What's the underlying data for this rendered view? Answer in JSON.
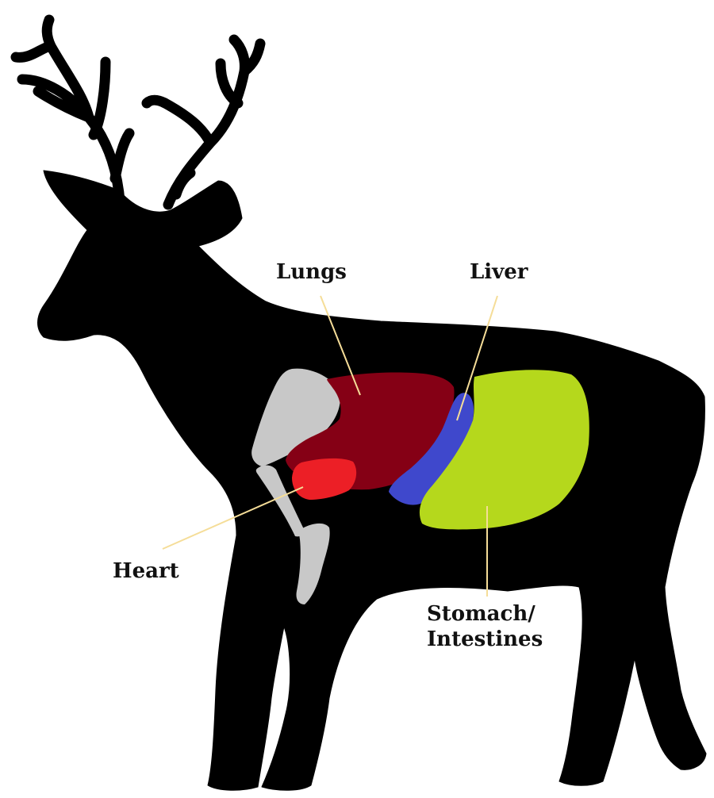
{
  "labels": {
    "lungs": "Lungs",
    "liver": "Liver",
    "heart": "Heart",
    "stomach_line1": "Stomach/",
    "stomach_line2": "Intestines"
  },
  "colors": {
    "silhouette": "#000000",
    "bone": "#c8c8c8",
    "lungs": "#850015",
    "heart": "#ec1f26",
    "liver": "#3f48cc",
    "stomach": "#b5d81c",
    "leader_line": "#f5dd98"
  }
}
